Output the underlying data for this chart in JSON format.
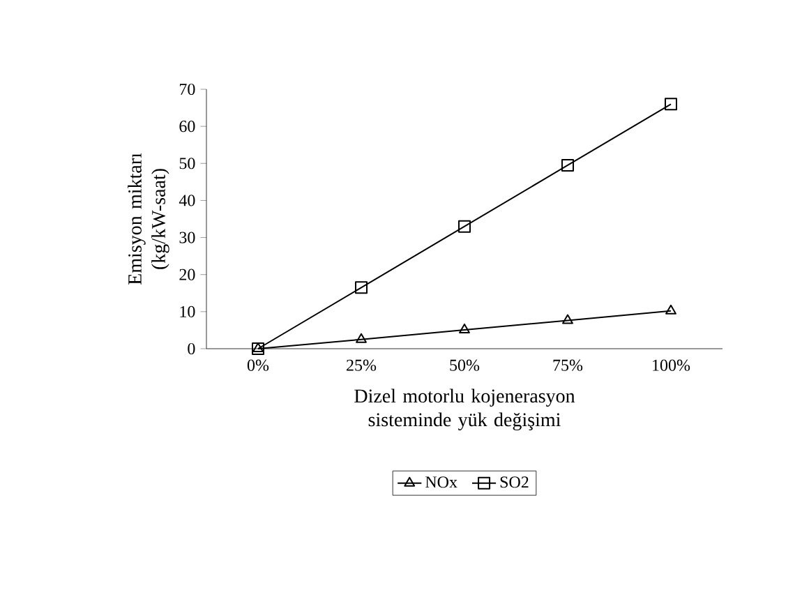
{
  "chart_data": {
    "type": "line",
    "xlabel": "Dizel motorlu kojenerasyon sisteminde yük değişimi",
    "ylabel": "Emisyon miktarı (kg/kW-saat)",
    "categories": [
      "0%",
      "25%",
      "50%",
      "75%",
      "100%"
    ],
    "ylim": [
      0,
      70
    ],
    "yticks": [
      0,
      10,
      20,
      30,
      40,
      50,
      60,
      70
    ],
    "grid": false,
    "legend": "bottom",
    "line_style": "solid",
    "series": [
      {
        "name": "NOx",
        "color": "#000000",
        "marker": "triangle",
        "values": [
          0,
          2.5,
          5.1,
          7.6,
          10.2
        ]
      },
      {
        "name": "SO2",
        "color": "#000000",
        "marker": "square",
        "values": [
          0,
          16.5,
          33,
          49.5,
          66
        ]
      }
    ]
  }
}
